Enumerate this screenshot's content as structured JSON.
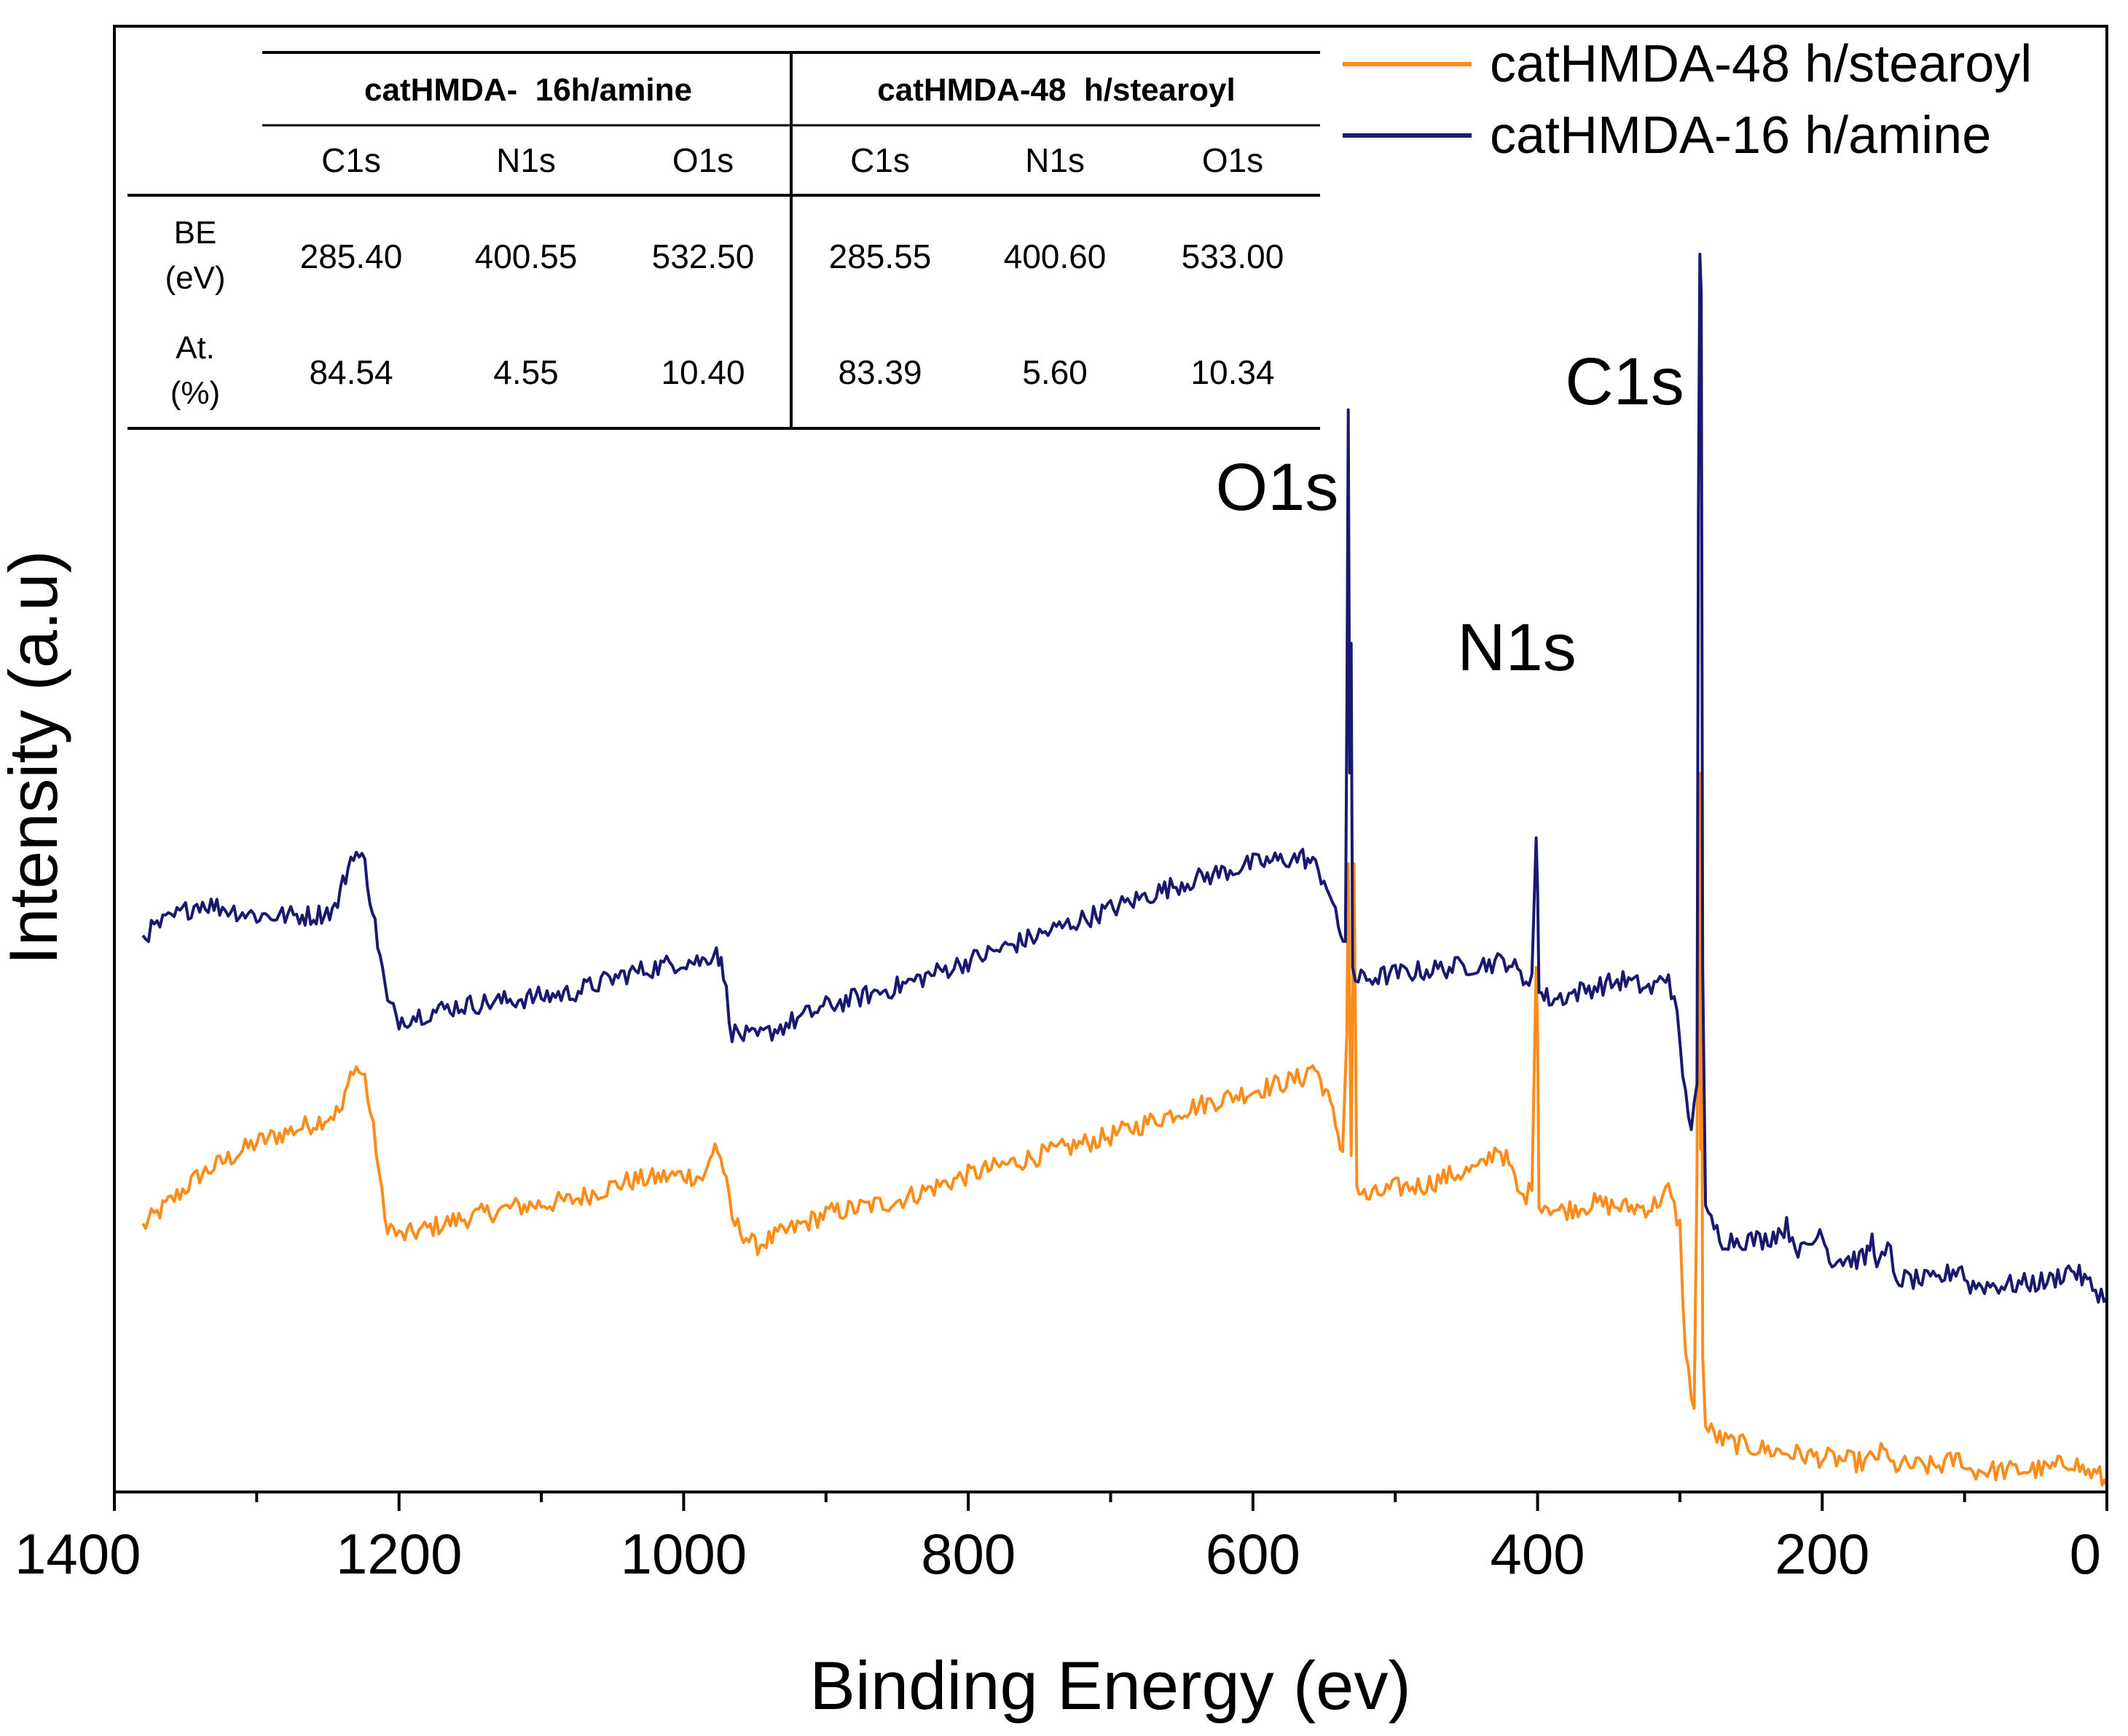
{
  "chart_data": {
    "type": "line",
    "title": "",
    "xlabel": "Binding Energy (ev)",
    "ylabel": "Intensity (a.u)",
    "xlim": [
      1400,
      0
    ],
    "xticks": [
      1400,
      1200,
      1000,
      800,
      600,
      400,
      200,
      0
    ],
    "xtick_labels": [
      "1400",
      "1200",
      "1000",
      "800",
      "600",
      "400",
      "200",
      "0"
    ],
    "yticks": [],
    "grid": false,
    "legend_position": "top-right",
    "series": [
      {
        "name": "catHMDA-48 h/stearoyl",
        "color": "#FF8C1A",
        "points": [
          [
            1380,
            0.2
          ],
          [
            1340,
            0.24
          ],
          [
            1300,
            0.265
          ],
          [
            1260,
            0.28
          ],
          [
            1240,
            0.29
          ],
          [
            1232,
            0.325
          ],
          [
            1224,
            0.315
          ],
          [
            1216,
            0.26
          ],
          [
            1210,
            0.205
          ],
          [
            1200,
            0.192
          ],
          [
            1160,
            0.205
          ],
          [
            1120,
            0.215
          ],
          [
            1080,
            0.22
          ],
          [
            1040,
            0.235
          ],
          [
            1000,
            0.24
          ],
          [
            985,
            0.238
          ],
          [
            978,
            0.265
          ],
          [
            972,
            0.245
          ],
          [
            966,
            0.205
          ],
          [
            950,
            0.185
          ],
          [
            900,
            0.21
          ],
          [
            850,
            0.22
          ],
          [
            800,
            0.24
          ],
          [
            750,
            0.255
          ],
          [
            700,
            0.27
          ],
          [
            650,
            0.29
          ],
          [
            600,
            0.305
          ],
          [
            565,
            0.315
          ],
          [
            558,
            0.325
          ],
          [
            549,
            0.305
          ],
          [
            542,
            0.28
          ],
          [
            537,
            0.258
          ],
          [
            534,
            0.35
          ],
          [
            533,
            0.48
          ],
          [
            531,
            0.255
          ],
          [
            529,
            0.48
          ],
          [
            527,
            0.23
          ],
          [
            520,
            0.222
          ],
          [
            500,
            0.23
          ],
          [
            480,
            0.232
          ],
          [
            460,
            0.24
          ],
          [
            440,
            0.245
          ],
          [
            428,
            0.262
          ],
          [
            420,
            0.248
          ],
          [
            412,
            0.222
          ],
          [
            404,
            0.228
          ],
          [
            401,
            0.4
          ],
          [
            400,
            0.35
          ],
          [
            399,
            0.22
          ],
          [
            385,
            0.212
          ],
          [
            360,
            0.218
          ],
          [
            340,
            0.215
          ],
          [
            320,
            0.215
          ],
          [
            308,
            0.228
          ],
          [
            300,
            0.2
          ],
          [
            296,
            0.1
          ],
          [
            290,
            0.06
          ],
          [
            288,
            0.24
          ],
          [
            287,
            0.55
          ],
          [
            285.5,
            0.26
          ],
          [
            285,
            0.55
          ],
          [
            284,
            0.1
          ],
          [
            282,
            0.045
          ],
          [
            270,
            0.035
          ],
          [
            240,
            0.028
          ],
          [
            200,
            0.022
          ],
          [
            170,
            0.018
          ],
          [
            155,
            0.028
          ],
          [
            152,
            0.016
          ],
          [
            120,
            0.015
          ],
          [
            102,
            0.022
          ],
          [
            98,
            0.012
          ],
          [
            70,
            0.012
          ],
          [
            40,
            0.013
          ],
          [
            25,
            0.02
          ],
          [
            15,
            0.011
          ],
          [
            5,
            0.008
          ],
          [
            0,
            0.0
          ]
        ]
      },
      {
        "name": "catHMDA-16 h/amine",
        "color": "#191970",
        "points": [
          [
            1380,
            0.425
          ],
          [
            1340,
            0.45
          ],
          [
            1300,
            0.44
          ],
          [
            1260,
            0.44
          ],
          [
            1245,
            0.445
          ],
          [
            1232,
            0.49
          ],
          [
            1224,
            0.48
          ],
          [
            1215,
            0.42
          ],
          [
            1208,
            0.372
          ],
          [
            1200,
            0.36
          ],
          [
            1160,
            0.37
          ],
          [
            1120,
            0.375
          ],
          [
            1080,
            0.38
          ],
          [
            1040,
            0.395
          ],
          [
            1000,
            0.405
          ],
          [
            985,
            0.405
          ],
          [
            977,
            0.415
          ],
          [
            972,
            0.395
          ],
          [
            966,
            0.35
          ],
          [
            950,
            0.345
          ],
          [
            900,
            0.37
          ],
          [
            850,
            0.385
          ],
          [
            800,
            0.405
          ],
          [
            750,
            0.425
          ],
          [
            700,
            0.445
          ],
          [
            650,
            0.465
          ],
          [
            600,
            0.48
          ],
          [
            565,
            0.485
          ],
          [
            558,
            0.48
          ],
          [
            548,
            0.465
          ],
          [
            540,
            0.43
          ],
          [
            535,
            0.42
          ],
          [
            534,
            0.6
          ],
          [
            533,
            0.83
          ],
          [
            532,
            0.55
          ],
          [
            531,
            0.65
          ],
          [
            530,
            0.4
          ],
          [
            528,
            0.39
          ],
          [
            500,
            0.395
          ],
          [
            460,
            0.4
          ],
          [
            420,
            0.405
          ],
          [
            410,
            0.39
          ],
          [
            404,
            0.395
          ],
          [
            401,
            0.5
          ],
          [
            400,
            0.46
          ],
          [
            399,
            0.38
          ],
          [
            390,
            0.375
          ],
          [
            360,
            0.385
          ],
          [
            340,
            0.39
          ],
          [
            320,
            0.383
          ],
          [
            308,
            0.395
          ],
          [
            302,
            0.36
          ],
          [
            296,
            0.3
          ],
          [
            292,
            0.28
          ],
          [
            288,
            0.31
          ],
          [
            287,
            0.75
          ],
          [
            286,
            0.95
          ],
          [
            285,
            0.92
          ],
          [
            284,
            0.4
          ],
          [
            282,
            0.21
          ],
          [
            270,
            0.19
          ],
          [
            240,
            0.19
          ],
          [
            225,
            0.2
          ],
          [
            215,
            0.18
          ],
          [
            205,
            0.19
          ],
          [
            200,
            0.2
          ],
          [
            195,
            0.175
          ],
          [
            170,
            0.175
          ],
          [
            165,
            0.19
          ],
          [
            160,
            0.17
          ],
          [
            152,
            0.185
          ],
          [
            150,
            0.16
          ],
          [
            120,
            0.158
          ],
          [
            102,
            0.17
          ],
          [
            98,
            0.155
          ],
          [
            70,
            0.155
          ],
          [
            40,
            0.158
          ],
          [
            25,
            0.168
          ],
          [
            10,
            0.153
          ],
          [
            0,
            0.145
          ]
        ]
      }
    ],
    "annotations": [
      {
        "text": "C1s",
        "x": 285
      },
      {
        "text": "O1s",
        "x": 531
      },
      {
        "text": "N1s",
        "x": 400
      }
    ],
    "table": {
      "group_headers": [
        "catHMDA-  16h/amine",
        "catHMDA-48  h/stearoyl"
      ],
      "sub_headers": [
        "C1s",
        "N1s",
        "O1s",
        "C1s",
        "N1s",
        "O1s"
      ],
      "rows": [
        {
          "label_line1": "BE",
          "label_line2": "(eV)",
          "values": [
            "285.40",
            "400.55",
            "532.50",
            "285.55",
            "400.60",
            "533.00"
          ]
        },
        {
          "label_line1": "At.",
          "label_line2": "(%)",
          "values": [
            "84.54",
            "4.55",
            "10.40",
            "83.39",
            "5.60",
            "10.34"
          ]
        }
      ]
    }
  }
}
